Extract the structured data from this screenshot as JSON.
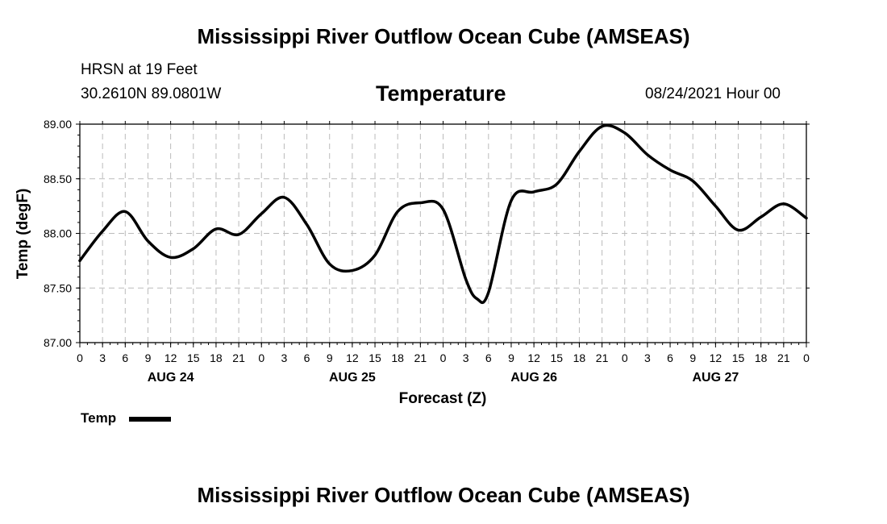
{
  "header": {
    "title": "Mississippi River Outflow Ocean Cube (AMSEAS)",
    "station": "HRSN at 19 Feet",
    "coords": "30.2610N  89.0801W",
    "variable": "Temperature",
    "datetime": "08/24/2021 Hour 00"
  },
  "footer": {
    "title": "Mississippi River Outflow Ocean Cube (AMSEAS)"
  },
  "legend": {
    "label": "Temp",
    "color": "#000000"
  },
  "chart_data": {
    "type": "line",
    "title": "Temperature",
    "xlabel": "Forecast (Z)",
    "ylabel": "Temp (degF)",
    "xlim": [
      0,
      96
    ],
    "ylim": [
      87.0,
      89.0
    ],
    "grid": true,
    "y_ticks": [
      "87.00",
      "87.50",
      "88.00",
      "88.50",
      "89.00"
    ],
    "x_tick_labels": [
      "0",
      "3",
      "6",
      "9",
      "12",
      "15",
      "18",
      "21",
      "0",
      "3",
      "6",
      "9",
      "12",
      "15",
      "18",
      "21",
      "0",
      "3",
      "6",
      "9",
      "12",
      "15",
      "18",
      "21",
      "0",
      "3",
      "6",
      "9",
      "12",
      "15",
      "18",
      "21",
      "0"
    ],
    "day_labels": [
      {
        "label": "AUG 24",
        "hour": 12
      },
      {
        "label": "AUG 25",
        "hour": 36
      },
      {
        "label": "AUG 26",
        "hour": 60
      },
      {
        "label": "AUG 27",
        "hour": 84
      }
    ],
    "series": [
      {
        "name": "Temp",
        "x": [
          0,
          3,
          6,
          9,
          12,
          15,
          18,
          21,
          24,
          27,
          30,
          33,
          36,
          39,
          42,
          45,
          48,
          51,
          52.5,
          54,
          57,
          60,
          63,
          66,
          69,
          72,
          75,
          78,
          81,
          84,
          87,
          90,
          93,
          96
        ],
        "values": [
          87.75,
          88.02,
          88.2,
          87.93,
          87.78,
          87.86,
          88.04,
          87.99,
          88.18,
          88.33,
          88.08,
          87.72,
          87.66,
          87.8,
          88.2,
          88.28,
          88.22,
          87.58,
          87.4,
          87.46,
          88.3,
          88.38,
          88.45,
          88.75,
          88.98,
          88.92,
          88.72,
          88.58,
          88.48,
          88.25,
          88.03,
          88.15,
          88.27,
          88.14
        ]
      }
    ]
  }
}
